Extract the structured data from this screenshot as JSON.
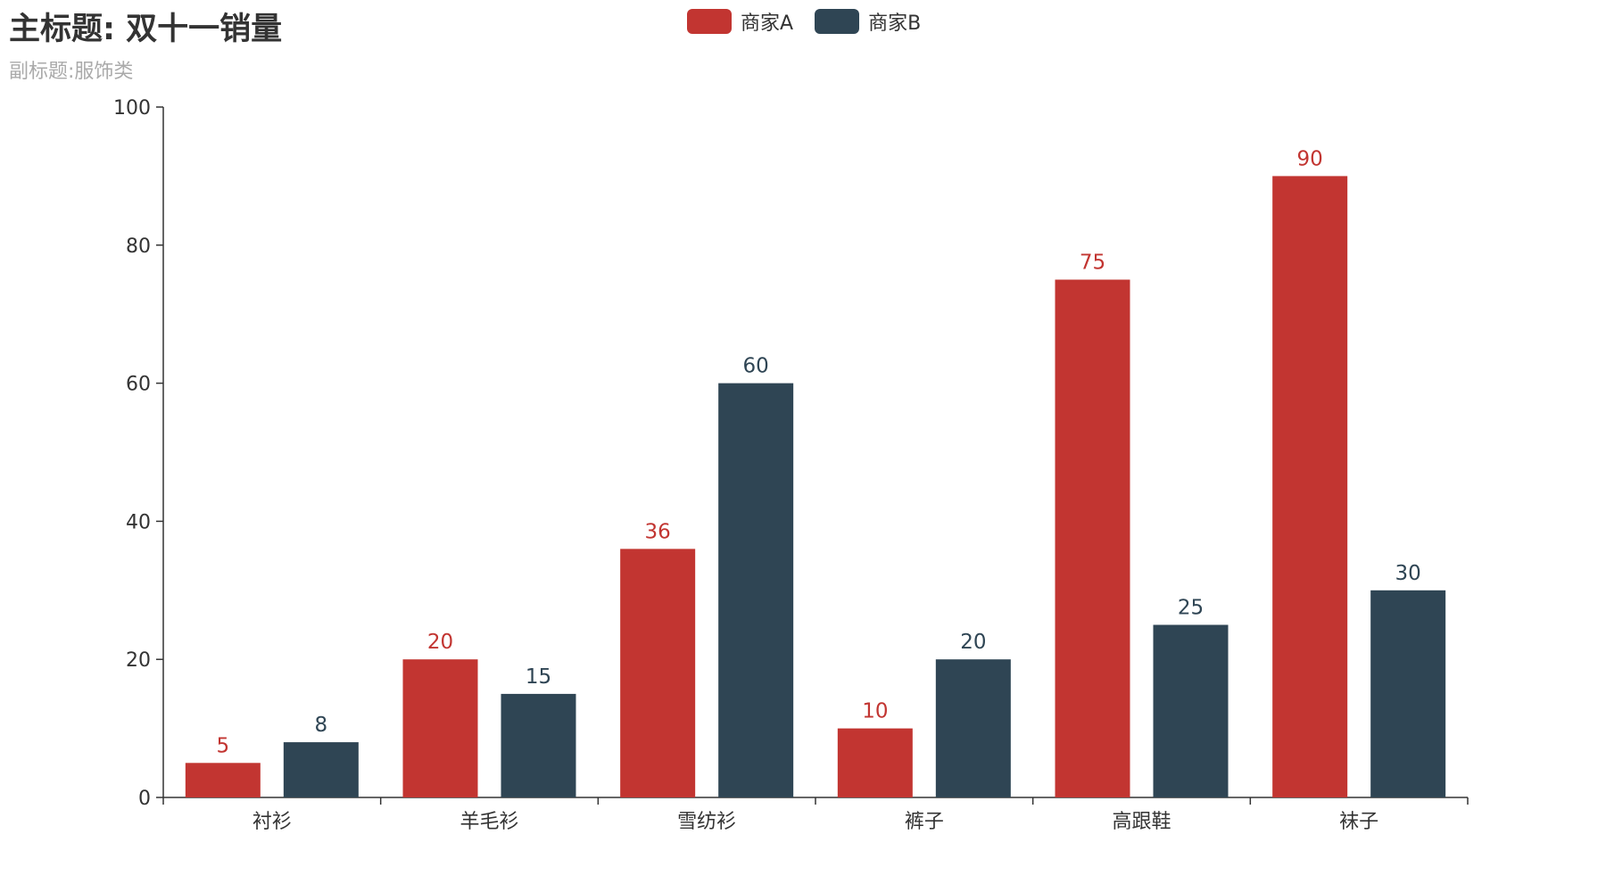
{
  "header": {
    "title": "主标题: 双十一销量",
    "subtitle": "副标题:服饰类"
  },
  "colors": {
    "series_a": "#c23531",
    "series_b": "#2f4554",
    "axis": "#333333",
    "title": "#333333",
    "subtitle": "#aaaaaa"
  },
  "legend": {
    "placement": "top-center",
    "items": [
      {
        "name": "商家A",
        "color": "#c23531"
      },
      {
        "name": "商家B",
        "color": "#2f4554"
      }
    ]
  },
  "chart_data": {
    "type": "bar",
    "title": "主标题: 双十一销量",
    "subtitle": "副标题:服饰类",
    "categories": [
      "衬衫",
      "羊毛衫",
      "雪纺衫",
      "裤子",
      "高跟鞋",
      "袜子"
    ],
    "series": [
      {
        "name": "商家A",
        "color": "#c23531",
        "values": [
          5,
          20,
          36,
          10,
          75,
          90
        ]
      },
      {
        "name": "商家B",
        "color": "#2f4554",
        "values": [
          8,
          15,
          60,
          20,
          25,
          30
        ]
      }
    ],
    "ylim": [
      0,
      100
    ],
    "yticks": [
      0,
      20,
      40,
      60,
      80,
      100
    ],
    "grid": false,
    "show_data_labels": true,
    "legend_position": "top-center"
  }
}
